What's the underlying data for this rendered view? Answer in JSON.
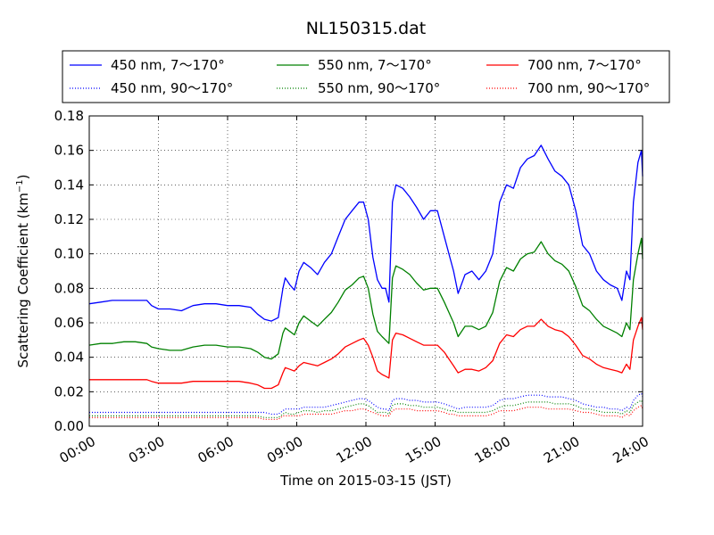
{
  "chart_data": {
    "type": "line",
    "title": "NL150315.dat",
    "xlabel": "Time on 2015-03-15 (JST)",
    "ylabel": "Scattering Coefficient (km",
    "ylabel_sup": "−1",
    "ylabel_tail": ")",
    "xlim": [
      0,
      24
    ],
    "ylim": [
      0,
      0.18
    ],
    "x_ticks": [
      0,
      3,
      6,
      9,
      12,
      15,
      18,
      21,
      24
    ],
    "x_tick_labels": [
      "00:00",
      "03:00",
      "06:00",
      "09:00",
      "12:00",
      "15:00",
      "18:00",
      "21:00",
      "24:00"
    ],
    "y_ticks": [
      0,
      0.02,
      0.04,
      0.06,
      0.08,
      0.1,
      0.12,
      0.14,
      0.16,
      0.18
    ],
    "y_tick_labels": [
      "0.00",
      "0.02",
      "0.04",
      "0.06",
      "0.08",
      "0.10",
      "0.12",
      "0.14",
      "0.16",
      "0.18"
    ],
    "grid": true,
    "legend_position": "top, above plot",
    "x": [
      0,
      0.5,
      1,
      1.5,
      2,
      2.5,
      2.7,
      3,
      3.5,
      4,
      4.5,
      5,
      5.5,
      6,
      6.5,
      7,
      7.3,
      7.6,
      7.9,
      8.2,
      8.4,
      8.5,
      8.7,
      8.9,
      9.1,
      9.3,
      9.6,
      9.9,
      10.2,
      10.5,
      10.8,
      11.1,
      11.4,
      11.7,
      11.9,
      12.1,
      12.3,
      12.5,
      12.7,
      12.85,
      13,
      13.15,
      13.3,
      13.6,
      13.9,
      14.2,
      14.5,
      14.8,
      15.1,
      15.4,
      15.6,
      15.8,
      16.0,
      16.3,
      16.6,
      16.9,
      17.2,
      17.5,
      17.8,
      18.1,
      18.4,
      18.7,
      19.0,
      19.3,
      19.6,
      19.9,
      20.2,
      20.5,
      20.8,
      21.1,
      21.4,
      21.7,
      22.0,
      22.3,
      22.6,
      22.9,
      23.1,
      23.3,
      23.45,
      23.6,
      23.8,
      23.95,
      24
    ],
    "series": [
      {
        "name": "450 nm, 7～170°",
        "color": "#0000ff",
        "style": "solid",
        "values": [
          0.071,
          0.072,
          0.073,
          0.073,
          0.073,
          0.073,
          0.07,
          0.068,
          0.068,
          0.067,
          0.07,
          0.071,
          0.071,
          0.07,
          0.07,
          0.069,
          0.065,
          0.062,
          0.061,
          0.063,
          0.08,
          0.086,
          0.082,
          0.079,
          0.09,
          0.095,
          0.092,
          0.088,
          0.095,
          0.1,
          0.11,
          0.12,
          0.125,
          0.13,
          0.13,
          0.12,
          0.098,
          0.085,
          0.08,
          0.08,
          0.072,
          0.13,
          0.14,
          0.138,
          0.133,
          0.127,
          0.12,
          0.125,
          0.125,
          0.11,
          0.1,
          0.09,
          0.077,
          0.088,
          0.09,
          0.085,
          0.09,
          0.1,
          0.13,
          0.14,
          0.138,
          0.15,
          0.155,
          0.157,
          0.163,
          0.155,
          0.148,
          0.145,
          0.14,
          0.125,
          0.105,
          0.1,
          0.09,
          0.085,
          0.082,
          0.08,
          0.073,
          0.09,
          0.085,
          0.13,
          0.153,
          0.16,
          0.145
        ]
      },
      {
        "name": "550 nm, 7～170°",
        "color": "#008000",
        "style": "solid",
        "values": [
          0.047,
          0.048,
          0.048,
          0.049,
          0.049,
          0.048,
          0.046,
          0.045,
          0.044,
          0.044,
          0.046,
          0.047,
          0.047,
          0.046,
          0.046,
          0.045,
          0.043,
          0.04,
          0.039,
          0.042,
          0.054,
          0.057,
          0.055,
          0.053,
          0.06,
          0.064,
          0.061,
          0.058,
          0.062,
          0.066,
          0.072,
          0.079,
          0.082,
          0.086,
          0.087,
          0.08,
          0.065,
          0.055,
          0.052,
          0.05,
          0.048,
          0.086,
          0.093,
          0.091,
          0.088,
          0.083,
          0.079,
          0.08,
          0.08,
          0.072,
          0.066,
          0.06,
          0.052,
          0.058,
          0.058,
          0.056,
          0.058,
          0.066,
          0.084,
          0.092,
          0.09,
          0.097,
          0.1,
          0.101,
          0.107,
          0.1,
          0.096,
          0.094,
          0.09,
          0.081,
          0.07,
          0.067,
          0.062,
          0.058,
          0.056,
          0.054,
          0.052,
          0.06,
          0.056,
          0.085,
          0.1,
          0.109,
          0.097
        ]
      },
      {
        "name": "700 nm, 7～170°",
        "color": "#ff0000",
        "style": "solid",
        "values": [
          0.027,
          0.027,
          0.027,
          0.027,
          0.027,
          0.027,
          0.026,
          0.025,
          0.025,
          0.025,
          0.026,
          0.026,
          0.026,
          0.026,
          0.026,
          0.025,
          0.024,
          0.022,
          0.022,
          0.024,
          0.031,
          0.034,
          0.033,
          0.032,
          0.035,
          0.037,
          0.036,
          0.035,
          0.037,
          0.039,
          0.042,
          0.046,
          0.048,
          0.05,
          0.051,
          0.047,
          0.04,
          0.032,
          0.03,
          0.029,
          0.028,
          0.05,
          0.054,
          0.053,
          0.051,
          0.049,
          0.047,
          0.047,
          0.047,
          0.043,
          0.039,
          0.035,
          0.031,
          0.033,
          0.033,
          0.032,
          0.034,
          0.038,
          0.048,
          0.053,
          0.052,
          0.056,
          0.058,
          0.058,
          0.062,
          0.058,
          0.056,
          0.055,
          0.052,
          0.047,
          0.041,
          0.039,
          0.036,
          0.034,
          0.033,
          0.032,
          0.031,
          0.036,
          0.033,
          0.05,
          0.058,
          0.063,
          0.056
        ]
      },
      {
        "name": "450 nm, 90～170°",
        "color": "#0000ff",
        "style": "dotted",
        "values": [
          0.008,
          0.008,
          0.008,
          0.008,
          0.008,
          0.008,
          0.008,
          0.008,
          0.008,
          0.008,
          0.008,
          0.008,
          0.008,
          0.008,
          0.008,
          0.008,
          0.008,
          0.008,
          0.007,
          0.007,
          0.009,
          0.01,
          0.01,
          0.01,
          0.01,
          0.011,
          0.011,
          0.011,
          0.011,
          0.012,
          0.013,
          0.014,
          0.015,
          0.016,
          0.016,
          0.015,
          0.013,
          0.011,
          0.01,
          0.01,
          0.009,
          0.015,
          0.016,
          0.016,
          0.015,
          0.015,
          0.014,
          0.014,
          0.014,
          0.013,
          0.012,
          0.011,
          0.01,
          0.011,
          0.011,
          0.011,
          0.011,
          0.012,
          0.015,
          0.016,
          0.016,
          0.017,
          0.018,
          0.018,
          0.018,
          0.017,
          0.017,
          0.017,
          0.016,
          0.015,
          0.013,
          0.012,
          0.011,
          0.011,
          0.01,
          0.01,
          0.009,
          0.011,
          0.01,
          0.015,
          0.018,
          0.019,
          0.017
        ]
      },
      {
        "name": "550 nm, 90～170°",
        "color": "#008000",
        "style": "dotted",
        "values": [
          0.006,
          0.006,
          0.006,
          0.006,
          0.006,
          0.006,
          0.006,
          0.006,
          0.006,
          0.006,
          0.006,
          0.006,
          0.006,
          0.006,
          0.006,
          0.006,
          0.006,
          0.005,
          0.005,
          0.005,
          0.007,
          0.008,
          0.007,
          0.007,
          0.008,
          0.009,
          0.009,
          0.008,
          0.009,
          0.009,
          0.01,
          0.011,
          0.012,
          0.013,
          0.013,
          0.012,
          0.01,
          0.008,
          0.008,
          0.008,
          0.007,
          0.012,
          0.013,
          0.013,
          0.012,
          0.012,
          0.011,
          0.011,
          0.011,
          0.01,
          0.009,
          0.009,
          0.008,
          0.008,
          0.008,
          0.008,
          0.008,
          0.009,
          0.011,
          0.012,
          0.012,
          0.013,
          0.014,
          0.014,
          0.014,
          0.014,
          0.013,
          0.013,
          0.013,
          0.012,
          0.01,
          0.01,
          0.009,
          0.008,
          0.008,
          0.008,
          0.007,
          0.009,
          0.008,
          0.012,
          0.014,
          0.015,
          0.013
        ]
      },
      {
        "name": "700 nm, 90～170°",
        "color": "#ff0000",
        "style": "dotted",
        "values": [
          0.005,
          0.005,
          0.005,
          0.005,
          0.005,
          0.005,
          0.005,
          0.005,
          0.005,
          0.005,
          0.005,
          0.005,
          0.005,
          0.005,
          0.005,
          0.005,
          0.005,
          0.004,
          0.004,
          0.004,
          0.006,
          0.006,
          0.006,
          0.006,
          0.006,
          0.007,
          0.007,
          0.007,
          0.007,
          0.007,
          0.008,
          0.009,
          0.009,
          0.01,
          0.01,
          0.009,
          0.008,
          0.007,
          0.006,
          0.006,
          0.006,
          0.009,
          0.01,
          0.01,
          0.01,
          0.009,
          0.009,
          0.009,
          0.009,
          0.008,
          0.007,
          0.007,
          0.006,
          0.006,
          0.006,
          0.006,
          0.006,
          0.007,
          0.009,
          0.009,
          0.009,
          0.01,
          0.011,
          0.011,
          0.011,
          0.01,
          0.01,
          0.01,
          0.01,
          0.009,
          0.008,
          0.008,
          0.007,
          0.006,
          0.006,
          0.006,
          0.005,
          0.007,
          0.006,
          0.009,
          0.011,
          0.012,
          0.01
        ]
      }
    ]
  }
}
